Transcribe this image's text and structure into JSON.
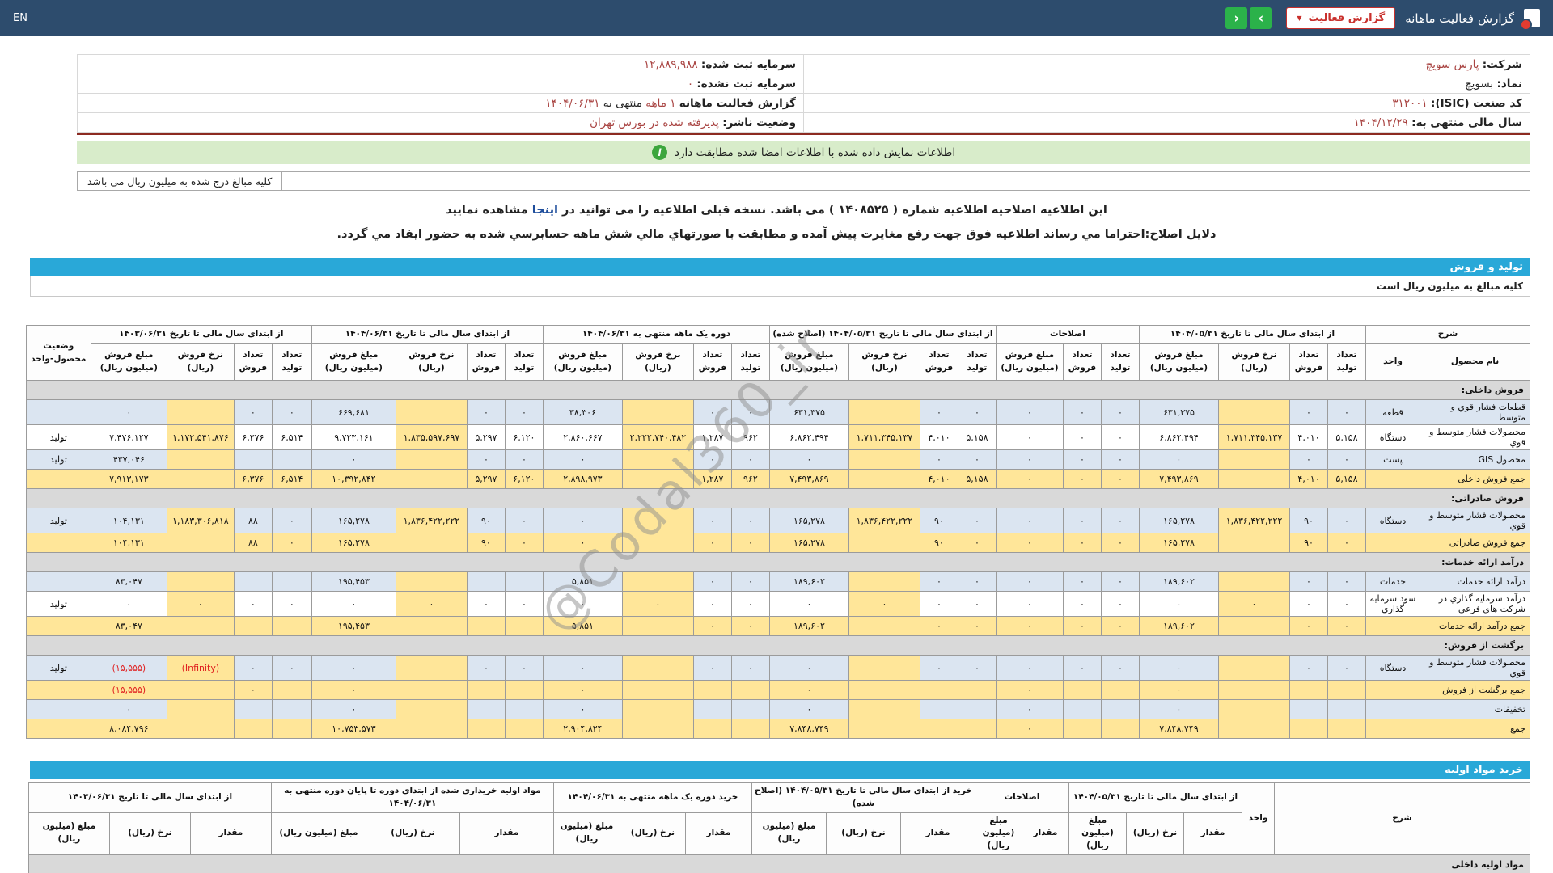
{
  "navbar": {
    "title": "گزارش فعالیت ماهانه",
    "button_label": "گزارش فعالیت",
    "caret": "▼",
    "chev_right": "›",
    "chev_left": "‹",
    "lang": "EN"
  },
  "colors": {
    "navbar_bg": "#2d4c6d",
    "accent_blue_bar": "#29a8d8",
    "green_button": "#2bb24a",
    "red_button": "#c9302c",
    "value_red": "#a94442",
    "negative_red": "#e01f1f",
    "rate_highlight": "#ffe699",
    "row_alt_blue": "#dbe5f1",
    "section_gray": "#d9d9d9",
    "banner_green": "#d8ecca"
  },
  "info": {
    "right_rows": [
      [
        {
          "t": "شرکت:"
        },
        {
          "t": "پارس سویچ",
          "red": true
        }
      ],
      [
        {
          "t": "نماد:"
        },
        {
          "t": "بسویچ"
        }
      ],
      [
        {
          "t": "کد صنعت (ISIC):"
        },
        {
          "t": "۳۱۲۰۰۱",
          "red": true
        }
      ],
      [
        {
          "t": "سال مالی منتهی به:"
        },
        {
          "t": "۱۴۰۴/۱۲/۲۹",
          "red": true
        }
      ]
    ],
    "left_rows": [
      [
        {
          "t": "سرمایه ثبت شده:"
        },
        {
          "t": "۱۲,۸۸۹,۹۸۸",
          "red": true
        }
      ],
      [
        {
          "t": "سرمایه ثبت نشده:"
        },
        {
          "t": "۰",
          "red": true
        }
      ],
      [
        {
          "t": "گزارش فعالیت ماهانه"
        },
        {
          "t": "۱ ماهه",
          "red": true
        },
        {
          "t": "منتهی به"
        },
        {
          "t": "۱۴۰۴/۰۶/۳۱",
          "red": true
        }
      ],
      [
        {
          "t": "وضعیت ناشر:"
        },
        {
          "t": "پذیرفته شده در بورس تهران",
          "red": true
        }
      ]
    ]
  },
  "banner": {
    "text": "اطلاعات نمایش داده شده با اطلاعات امضا شده مطابقت دارد",
    "icon_glyph": "i"
  },
  "amounts_note": "کلیه مبالغ درج شده به میلیون ریال می باشد",
  "amendment": {
    "line1_pre": "این اطلاعیه اصلاحیه اطلاعیه شماره ( ۱۴۰۸۵۲۵ ) می باشد. نسخه قبلی اطلاعیه را می توانید در ",
    "line1_link": "اینجا",
    "line1_post": " مشاهده نمایید",
    "line2": "دلایل اصلاح:احتراما مي رساند اطلاعيه فوق جهت رفع مغايرت پيش آمده و مطابقت با صورتهاي مالي شش ماهه حسابرسي شده به حضور ايفاد مي گردد."
  },
  "watermark": "@Codal360_ir",
  "sales": {
    "bar": "تولید و فروش",
    "note": "کلیه مبالغ به میلیون ریال است",
    "h_desc": "شرح",
    "h_name": "نام محصول",
    "h_unit": "واحد",
    "h_status": "وضعیت محصول-واحد",
    "rate_cols": [
      2,
      9,
      13,
      17,
      21
    ],
    "groups": [
      {
        "title": "از ابتدای سال مالی تا تاریخ ۱۴۰۴/۰۵/۳۱",
        "cols": [
          "تعداد تولید",
          "تعداد فروش",
          "نرخ فروش (ریال)",
          "مبلغ فروش (میلیون ریال)"
        ]
      },
      {
        "title": "اصلاحات",
        "cols": [
          "تعداد تولید",
          "تعداد فروش",
          "مبلغ فروش (میلیون ریال)"
        ]
      },
      {
        "title": "از ابتدای سال مالی تا تاریخ ۱۴۰۴/۰۵/۳۱ (اصلاح شده)",
        "cols": [
          "تعداد تولید",
          "تعداد فروش",
          "نرخ فروش (ریال)",
          "مبلغ فروش (میلیون ریال)"
        ]
      },
      {
        "title": "دوره یک ماهه منتهی به ۱۴۰۴/۰۶/۳۱",
        "cols": [
          "تعداد تولید",
          "تعداد فروش",
          "نرخ فروش (ریال)",
          "مبلغ فروش (میلیون ریال)"
        ]
      },
      {
        "title": "از ابتدای سال مالی تا تاریخ ۱۴۰۴/۰۶/۳۱",
        "cols": [
          "تعداد تولید",
          "تعداد فروش",
          "نرخ فروش (ریال)",
          "مبلغ فروش (میلیون ریال)"
        ]
      },
      {
        "title": "از ابتدای سال مالی تا تاریخ ۱۴۰۳/۰۶/۳۱",
        "cols": [
          "تعداد تولید",
          "تعداد فروش",
          "نرخ فروش (ریال)",
          "مبلغ فروش (میلیون ریال)"
        ]
      }
    ],
    "rows": [
      {
        "type": "section",
        "label": "فروش داخلی:"
      },
      {
        "type": "data",
        "shade": "blue",
        "name": "قطعات فشار قوي و متوسط",
        "unit": "قطعه",
        "status": "",
        "cells": [
          "۰",
          "۰",
          "",
          "۶۳۱,۳۷۵",
          "۰",
          "۰",
          "۰",
          "۰",
          "۰",
          "",
          "۶۳۱,۳۷۵",
          "۰",
          "۰",
          "",
          "۳۸,۳۰۶",
          "۰",
          "۰",
          "",
          "۶۶۹,۶۸۱",
          "۰",
          "۰",
          "",
          "۰"
        ]
      },
      {
        "type": "data",
        "shade": "white",
        "name": "محصولات فشار متوسط و قوي",
        "unit": "دستگاه",
        "status": "تولید",
        "cells": [
          "۵,۱۵۸",
          "۴,۰۱۰",
          "۱,۷۱۱,۳۴۵,۱۳۷",
          "۶,۸۶۲,۴۹۴",
          "۰",
          "۰",
          "۰",
          "۵,۱۵۸",
          "۴,۰۱۰",
          "۱,۷۱۱,۳۴۵,۱۳۷",
          "۶,۸۶۲,۴۹۴",
          "۹۶۲",
          "۱,۲۸۷",
          "۲,۲۲۲,۷۴۰,۴۸۲",
          "۲,۸۶۰,۶۶۷",
          "۶,۱۲۰",
          "۵,۲۹۷",
          "۱,۸۳۵,۵۹۷,۶۹۷",
          "۹,۷۲۳,۱۶۱",
          "۶,۵۱۴",
          "۶,۳۷۶",
          "۱,۱۷۲,۵۴۱,۸۷۶",
          "۷,۴۷۶,۱۲۷"
        ]
      },
      {
        "type": "data",
        "shade": "blue",
        "name": "محصول GIS",
        "unit": "پست",
        "status": "تولید",
        "cells": [
          "۰",
          "۰",
          "",
          "۰",
          "۰",
          "۰",
          "۰",
          "۰",
          "۰",
          "",
          "۰",
          "۰",
          "۰",
          "",
          "۰",
          "۰",
          "۰",
          "",
          "۰",
          "",
          "",
          "",
          "۴۳۷,۰۴۶"
        ]
      },
      {
        "type": "data",
        "shade": "sum",
        "name": "جمع فروش داخلی",
        "unit": "",
        "status": "",
        "cells": [
          "۵,۱۵۸",
          "۴,۰۱۰",
          "",
          "۷,۴۹۳,۸۶۹",
          "۰",
          "۰",
          "۰",
          "۵,۱۵۸",
          "۴,۰۱۰",
          "",
          "۷,۴۹۳,۸۶۹",
          "۹۶۲",
          "۱,۲۸۷",
          "",
          "۲,۸۹۸,۹۷۳",
          "۶,۱۲۰",
          "۵,۲۹۷",
          "",
          "۱۰,۳۹۲,۸۴۲",
          "۶,۵۱۴",
          "۶,۳۷۶",
          "",
          "۷,۹۱۳,۱۷۳"
        ]
      },
      {
        "type": "section",
        "label": "فروش صادراتی:"
      },
      {
        "type": "data",
        "shade": "blue",
        "name": "محصولات فشار متوسط و قوي",
        "unit": "دستگاه",
        "status": "تولید",
        "cells": [
          "۰",
          "۹۰",
          "۱,۸۳۶,۴۲۲,۲۲۲",
          "۱۶۵,۲۷۸",
          "۰",
          "۰",
          "۰",
          "۰",
          "۹۰",
          "۱,۸۳۶,۴۲۲,۲۲۲",
          "۱۶۵,۲۷۸",
          "۰",
          "۰",
          "",
          "۰",
          "۰",
          "۹۰",
          "۱,۸۳۶,۴۲۲,۲۲۲",
          "۱۶۵,۲۷۸",
          "۰",
          "۸۸",
          "۱,۱۸۳,۳۰۶,۸۱۸",
          "۱۰۴,۱۳۱"
        ]
      },
      {
        "type": "data",
        "shade": "sum",
        "name": "جمع فروش صادراتی",
        "unit": "",
        "status": "",
        "cells": [
          "۰",
          "۹۰",
          "",
          "۱۶۵,۲۷۸",
          "۰",
          "۰",
          "۰",
          "۰",
          "۹۰",
          "",
          "۱۶۵,۲۷۸",
          "۰",
          "۰",
          "",
          "۰",
          "۰",
          "۹۰",
          "",
          "۱۶۵,۲۷۸",
          "۰",
          "۸۸",
          "",
          "۱۰۴,۱۳۱"
        ]
      },
      {
        "type": "section",
        "label": "درآمد ارائه خدمات:"
      },
      {
        "type": "data",
        "shade": "blue",
        "name": "درآمد ارائه خدمات",
        "unit": "خدمات",
        "status": "",
        "cells": [
          "۰",
          "۰",
          "",
          "۱۸۹,۶۰۲",
          "۰",
          "۰",
          "۰",
          "۰",
          "۰",
          "",
          "۱۸۹,۶۰۲",
          "۰",
          "۰",
          "",
          "۵,۸۵۱",
          "",
          "",
          "",
          "۱۹۵,۴۵۳",
          "",
          "",
          "",
          "۸۳,۰۴۷"
        ]
      },
      {
        "type": "data",
        "shade": "white",
        "name": "درآمد سرمایه گذاري در شرکت های فرعي",
        "unit": "سود سرمایه گذاري",
        "status": "تولید",
        "cells": [
          "۰",
          "۰",
          "۰",
          "۰",
          "۰",
          "۰",
          "۰",
          "۰",
          "۰",
          "۰",
          "۰",
          "۰",
          "۰",
          "۰",
          "۰",
          "۰",
          "۰",
          "۰",
          "۰",
          "۰",
          "۰",
          "۰",
          "۰"
        ]
      },
      {
        "type": "data",
        "shade": "sum",
        "name": "جمع درآمد ارائه خدمات",
        "unit": "",
        "status": "",
        "cells": [
          "۰",
          "۰",
          "",
          "۱۸۹,۶۰۲",
          "۰",
          "۰",
          "۰",
          "۰",
          "۰",
          "",
          "۱۸۹,۶۰۲",
          "۰",
          "۰",
          "",
          "۵,۸۵۱",
          "",
          "",
          "",
          "۱۹۵,۴۵۳",
          "",
          "",
          "",
          "۸۳,۰۴۷"
        ]
      },
      {
        "type": "section",
        "label": "برگشت از فروش:"
      },
      {
        "type": "data",
        "shade": "blue",
        "name": "محصولات فشار متوسط و قوي",
        "unit": "دستگاه",
        "status": "تولید",
        "cells": [
          "۰",
          "۰",
          "",
          "۰",
          "۰",
          "۰",
          "۰",
          "۰",
          "۰",
          "",
          "۰",
          "۰",
          "۰",
          "",
          "۰",
          "۰",
          "۰",
          "",
          "۰",
          "۰",
          "۰",
          "(Infinity)",
          "(۱۵,۵۵۵)"
        ]
      },
      {
        "type": "data",
        "shade": "sum",
        "name": "جمع برگشت از فروش",
        "unit": "",
        "status": "",
        "cells": [
          "",
          "",
          "",
          "۰",
          "",
          "",
          "۰",
          "",
          "",
          "",
          "۰",
          "",
          "",
          "",
          "۰",
          "",
          "",
          "",
          "۰",
          "",
          "۰",
          "",
          "(۱۵,۵۵۵)"
        ]
      },
      {
        "type": "data",
        "shade": "blue",
        "name": "تخفیفات",
        "unit": "",
        "status": "",
        "cells": [
          "",
          "",
          "",
          "۰",
          "",
          "",
          "۰",
          "",
          "",
          "",
          "۰",
          "",
          "",
          "",
          "۰",
          "",
          "",
          "",
          "۰",
          "",
          "",
          "",
          "۰"
        ]
      },
      {
        "type": "data",
        "shade": "sum",
        "name": "جمع",
        "unit": "",
        "status": "",
        "cells": [
          "",
          "",
          "",
          "۷,۸۴۸,۷۴۹",
          "",
          "",
          "۰",
          "",
          "",
          "",
          "۷,۸۴۸,۷۴۹",
          "",
          "",
          "",
          "۲,۹۰۴,۸۲۴",
          "",
          "",
          "",
          "۱۰,۷۵۳,۵۷۳",
          "",
          "",
          "",
          "۸,۰۸۴,۷۹۶"
        ]
      }
    ]
  },
  "materials": {
    "bar": "خرید مواد اولیه",
    "h_desc": "شرح",
    "h_unit": "واحد",
    "groups": [
      {
        "title": "از ابتدای سال مالی تا تاریخ ۱۴۰۴/۰۵/۳۱",
        "cols": [
          "مقدار",
          "نرخ (ریال)",
          "مبلغ (میلیون ریال)"
        ]
      },
      {
        "title": "اصلاحات",
        "cols": [
          "مقدار",
          "مبلغ (میلیون ریال)"
        ]
      },
      {
        "title": "خرید از ابتدای سال مالی تا تاریخ ۱۴۰۴/۰۵/۳۱ (اصلاح شده)",
        "cols": [
          "مقدار",
          "نرخ (ریال)",
          "مبلغ (میلیون ریال)"
        ]
      },
      {
        "title": "خرید دوره یک ماهه منتهی به ۱۴۰۴/۰۶/۳۱",
        "cols": [
          "مقدار",
          "نرخ (ریال)",
          "مبلغ (میلیون ریال)"
        ]
      },
      {
        "title": "مواد اولیه خریداری شده از ابتدای دوره تا پایان دوره منتهی به ۱۴۰۴/۰۶/۳۱",
        "cols": [
          "مقدار",
          "نرخ (ریال)",
          "مبلغ (میلیون ریال)"
        ]
      },
      {
        "title": "از ابتدای سال مالی تا تاریخ ۱۴۰۳/۰۶/۳۱",
        "cols": [
          "مقدار",
          "نرخ (ریال)",
          "مبلغ (میلیون ریال)"
        ]
      }
    ],
    "section": "مواد اولیه داخلی"
  }
}
